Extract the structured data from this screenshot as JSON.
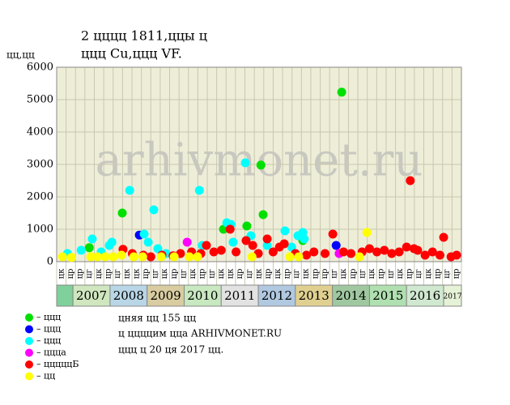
{
  "chart_data": {
    "type": "scatter",
    "title": [
      "2 цццц 1811,ццы ц",
      "ццц Cu,ццц VF."
    ],
    "y_label": "цц,цц",
    "watermark": "arhivmonet.ru",
    "xlim": [
      2006.56,
      2017.48
    ],
    "ylim": [
      0,
      6000
    ],
    "yticks": [
      0,
      1000,
      2000,
      3000,
      4000,
      5000,
      6000
    ],
    "grid": true,
    "columns": [
      "цк",
      "цр",
      "цр",
      "цг",
      "цк",
      "цр",
      "цг",
      "цк",
      "цк",
      "цр",
      "цг",
      "цк",
      "цр",
      "цг",
      "цк",
      "цр",
      "цг",
      "цк",
      "цк",
      "цр",
      "цг",
      "цк",
      "цр",
      "цк",
      "цр",
      "цг",
      "цк",
      "цр",
      "цр",
      "цг",
      "цк",
      "цр",
      "цг",
      "цк",
      "цр",
      "цг",
      "цк",
      "цр",
      "цг",
      "цк",
      "цр",
      "цг",
      "цр"
    ],
    "year_bands": [
      {
        "label": "2007",
        "color": "#cfe6bf"
      },
      {
        "label": "2008",
        "color": "#b8d6e6"
      },
      {
        "label": "2009",
        "color": "#d8cca0"
      },
      {
        "label": "2010",
        "color": "#c8e8c0"
      },
      {
        "label": "2011",
        "color": "#e2e2e2"
      },
      {
        "label": "2012",
        "color": "#b0c8e0"
      },
      {
        "label": "2013",
        "color": "#e0d090"
      },
      {
        "label": "2014",
        "color": "#a0c8a0"
      },
      {
        "label": "2015",
        "color": "#b0e0b0"
      },
      {
        "label": "2016",
        "color": "#d0e8d0"
      },
      {
        "label": "2017",
        "color": "#e6f2d6"
      }
    ],
    "series": [
      {
        "name": "– ццц",
        "color": "#00e000",
        "x": [
          2007.44,
          2008.33,
          2011.06,
          2011.69,
          2012.07,
          2012.13,
          2013.2,
          2014.25
        ],
        "values": [
          430,
          1500,
          1000,
          1100,
          2980,
          1450,
          650,
          5230
        ]
      },
      {
        "name": "– ццц",
        "color": "#0000ff",
        "x": [
          2008.79,
          2014.1
        ],
        "values": [
          820,
          500
        ]
      },
      {
        "name": "– ццц",
        "color": "#00ffff",
        "x": [
          2006.85,
          2007.22,
          2007.52,
          2007.76,
          2007.98,
          2008.05,
          2008.53,
          2008.92,
          2009.03,
          2009.18,
          2009.29,
          2009.51,
          2010.41,
          2010.49,
          2011.15,
          2011.26,
          2011.32,
          2011.65,
          2011.8,
          2012.24,
          2012.72,
          2012.9,
          2013.07,
          2013.2,
          2013.24
        ],
        "values": [
          250,
          350,
          700,
          300,
          500,
          600,
          2200,
          850,
          600,
          1600,
          400,
          250,
          2200,
          500,
          1200,
          1150,
          600,
          3050,
          800,
          500,
          950,
          450,
          800,
          900,
          700
        ]
      },
      {
        "name": "– ццца",
        "color": "#ff00ff",
        "x": [
          2010.08,
          2014.18
        ],
        "values": [
          600,
          250
        ]
      },
      {
        "name": "– цццццБ",
        "color": "#ff0000",
        "x": [
          2008.35,
          2008.6,
          2008.9,
          2009.1,
          2009.4,
          2009.7,
          2009.9,
          2010.2,
          2010.45,
          2010.6,
          2010.8,
          2011.0,
          2011.24,
          2011.4,
          2011.67,
          2011.85,
          2012.0,
          2012.24,
          2012.4,
          2012.57,
          2012.7,
          2013.0,
          2013.3,
          2013.5,
          2013.8,
          2014.01,
          2014.3,
          2014.5,
          2014.8,
          2015.0,
          2015.2,
          2015.4,
          2015.6,
          2015.8,
          2016.0,
          2016.1,
          2016.2,
          2016.3,
          2016.5,
          2016.7,
          2016.9,
          2017.0,
          2017.2,
          2017.35
        ],
        "values": [
          380,
          250,
          200,
          150,
          200,
          180,
          250,
          300,
          250,
          500,
          300,
          350,
          1000,
          300,
          650,
          500,
          250,
          700,
          300,
          450,
          550,
          250,
          200,
          300,
          250,
          850,
          300,
          250,
          300,
          400,
          300,
          350,
          250,
          300,
          450,
          2500,
          400,
          350,
          200,
          300,
          200,
          750,
          150,
          200
        ]
      },
      {
        "name": "– цц",
        "color": "#ffff00",
        "x": [
          2006.72,
          2006.96,
          2007.48,
          2007.66,
          2007.87,
          2008.09,
          2008.31,
          2008.64,
          2008.88,
          2009.38,
          2009.73,
          2010.14,
          2010.36,
          2011.83,
          2012.85,
          2013.09,
          2014.73,
          2014.93
        ],
        "values": [
          150,
          130,
          150,
          150,
          150,
          150,
          200,
          150,
          150,
          150,
          150,
          150,
          150,
          150,
          150,
          150,
          150,
          900
        ]
      }
    ],
    "notes": [
      "цняя цц 155 цц",
      "ц ццццим цца ARHIVMONET.RU",
      "ццц ц 20 ця 2017 цц."
    ]
  }
}
